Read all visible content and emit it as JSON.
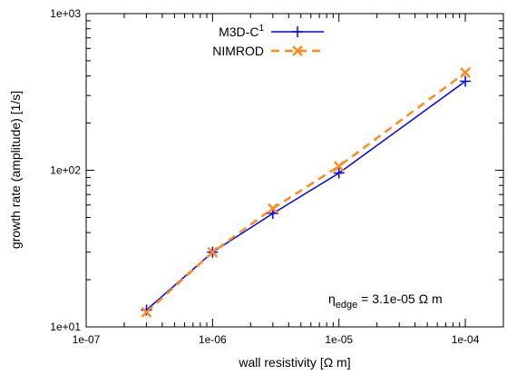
{
  "chart_data": {
    "type": "line",
    "title": "",
    "xlabel": "wall resistivity [Ω m]",
    "ylabel": "growth rate (amplitude) [1/s]",
    "xscale": "log",
    "yscale": "log",
    "xlim": [
      1e-07,
      0.0002
    ],
    "ylim": [
      10,
      1000
    ],
    "x_ticks": [
      {
        "value": 1e-07,
        "label": "1e-07"
      },
      {
        "value": 1e-06,
        "label": "1e-06"
      },
      {
        "value": 1e-05,
        "label": "1e-05"
      },
      {
        "value": 0.0001,
        "label": "1e-04"
      }
    ],
    "y_ticks": [
      {
        "value": 10,
        "label": "1e+01"
      },
      {
        "value": 100,
        "label": "1e+02"
      },
      {
        "value": 1000,
        "label": "1e+03"
      }
    ],
    "grid": false,
    "legend_position": "top-center",
    "series": [
      {
        "name": "M3D-C",
        "name_superscript": "1",
        "color": "#0000ff",
        "line_style": "solid",
        "marker": "plus",
        "x": [
          3e-07,
          1e-06,
          3e-06,
          1e-05,
          0.0001
        ],
        "y": [
          12.8,
          30,
          53,
          96,
          370
        ]
      },
      {
        "name": "NIMROD",
        "color": "#ff8c1a",
        "line_style": "dashed",
        "marker": "cross",
        "x": [
          3e-07,
          1e-06,
          3e-06,
          1e-05,
          0.0001
        ],
        "y": [
          12.4,
          30,
          57,
          106,
          420
        ]
      }
    ],
    "annotation": {
      "symbol": "η",
      "subscript": "edge",
      "text": " = 3.1e-05 Ω m"
    }
  }
}
